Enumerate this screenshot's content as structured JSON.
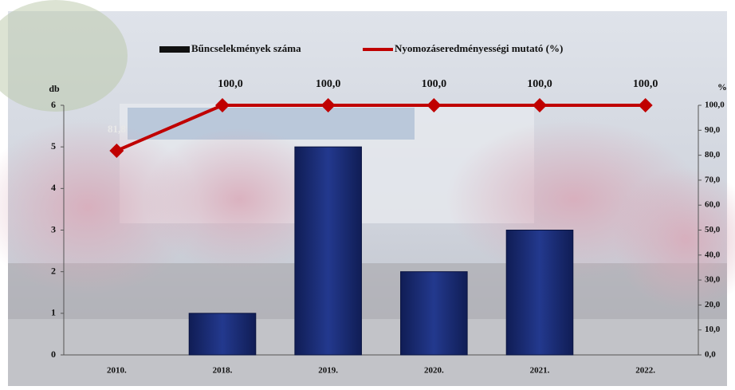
{
  "chart_data": {
    "type": "bar",
    "categories": [
      "2010.",
      "2018.",
      "2019.",
      "2020.",
      "2021.",
      "2022."
    ],
    "series": [
      {
        "name": "Bűncselekmények száma",
        "color": "#1b2f7a",
        "type": "bar",
        "values": [
          0,
          1,
          5,
          2,
          3,
          0
        ]
      },
      {
        "name": "Nyomozáseredményességi mutató (%)",
        "color": "#c00000",
        "type": "line",
        "axis": "y2",
        "values": [
          81.8,
          100,
          100,
          100,
          100,
          100
        ],
        "value_labels": [
          "81,8",
          "100,0",
          "100,0",
          "100,0",
          "100,0",
          "100,0"
        ]
      }
    ],
    "ylabel": "db",
    "y2label": "%",
    "ylim": [
      0,
      6
    ],
    "yticks": [
      0,
      1,
      2,
      3,
      4,
      5,
      6
    ],
    "y2lim": [
      0,
      100
    ],
    "y2ticks": [
      {
        "value": 0,
        "label": "0,0"
      },
      {
        "value": 10,
        "label": "10,0"
      },
      {
        "value": 20,
        "label": "20,0"
      },
      {
        "value": 30,
        "label": "30,0"
      },
      {
        "value": 40,
        "label": "40,0"
      },
      {
        "value": 50,
        "label": "50,0"
      },
      {
        "value": 60,
        "label": "60,0"
      },
      {
        "value": 70,
        "label": "70,0"
      },
      {
        "value": 80,
        "label": "80,0"
      },
      {
        "value": 90,
        "label": "90,0"
      },
      {
        "value": 100,
        "label": "100,0"
      }
    ],
    "legend": "top"
  }
}
